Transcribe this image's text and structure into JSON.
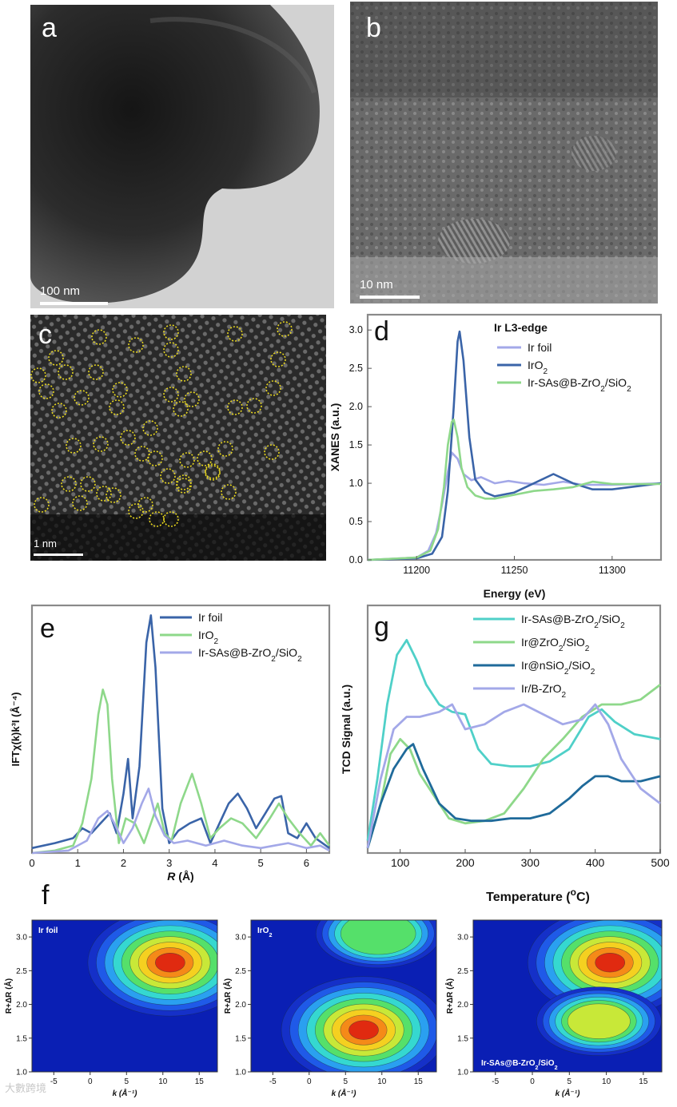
{
  "panels": {
    "a": {
      "label": "a",
      "scale": "100 nm"
    },
    "b": {
      "label": "b",
      "scale": "10 nm"
    },
    "c": {
      "label": "c",
      "scale": "1 nm"
    },
    "d": {
      "label": "d"
    },
    "e": {
      "label": "e"
    },
    "f": {
      "label": "f"
    },
    "g": {
      "label": "g"
    }
  },
  "chart_data": [
    {
      "id": "d",
      "type": "line",
      "title": "Ir L3-edge",
      "xlabel": "Energy (eV)",
      "ylabel": "XANES (a.u.)",
      "xlim": [
        11175,
        11325
      ],
      "ylim": [
        0,
        3.2
      ],
      "xticks": [
        11200,
        11250,
        11300
      ],
      "yticks": [
        0.0,
        0.5,
        1.0,
        1.5,
        2.0,
        2.5,
        3.0
      ],
      "series": [
        {
          "name": "Ir foil",
          "color": "#a3a8e8",
          "x": [
            11175,
            11200,
            11206,
            11210,
            11213,
            11216,
            11218,
            11221,
            11224,
            11228,
            11233,
            11240,
            11247,
            11255,
            11265,
            11275,
            11285,
            11300,
            11325
          ],
          "y": [
            0.0,
            0.03,
            0.12,
            0.35,
            0.72,
            1.15,
            1.4,
            1.32,
            1.12,
            1.04,
            1.08,
            1.0,
            1.03,
            1.0,
            0.98,
            1.02,
            0.98,
            0.98,
            1.0
          ]
        },
        {
          "name": "IrO2",
          "color": "#3a64a8",
          "x": [
            11175,
            11200,
            11208,
            11213,
            11216,
            11219,
            11221,
            11222,
            11224,
            11227,
            11230,
            11235,
            11240,
            11250,
            11260,
            11270,
            11280,
            11290,
            11300,
            11325
          ],
          "y": [
            0.0,
            0.02,
            0.08,
            0.3,
            0.9,
            2.0,
            2.85,
            2.98,
            2.6,
            1.6,
            1.05,
            0.88,
            0.83,
            0.88,
            1.0,
            1.12,
            1.0,
            0.92,
            0.92,
            1.0
          ]
        },
        {
          "name": "Ir-SAs@B-ZrO2/SiO2",
          "color": "#8ed88a",
          "x": [
            11175,
            11200,
            11207,
            11211,
            11214,
            11216,
            11218,
            11219,
            11221,
            11223,
            11226,
            11230,
            11235,
            11240,
            11250,
            11260,
            11270,
            11280,
            11290,
            11300,
            11325
          ],
          "y": [
            0.0,
            0.03,
            0.12,
            0.4,
            0.95,
            1.5,
            1.8,
            1.83,
            1.6,
            1.2,
            0.95,
            0.84,
            0.8,
            0.8,
            0.85,
            0.9,
            0.92,
            0.95,
            1.02,
            0.99,
            0.99
          ]
        }
      ]
    },
    {
      "id": "e",
      "type": "line",
      "xlabel": "R (Å)",
      "ylabel": "IFTχ(k)k³I (Å⁻⁴)",
      "xlim": [
        0,
        6.5
      ],
      "ylim": [
        0,
        1.0
      ],
      "xticks": [
        0,
        1,
        2,
        3,
        4,
        5,
        6
      ],
      "series": [
        {
          "name": "Ir foil",
          "color": "#3a64a8",
          "x": [
            0,
            0.5,
            0.9,
            1.1,
            1.3,
            1.5,
            1.7,
            1.85,
            2.0,
            2.1,
            2.2,
            2.35,
            2.5,
            2.6,
            2.7,
            2.85,
            3.0,
            3.2,
            3.45,
            3.7,
            3.9,
            4.1,
            4.3,
            4.5,
            4.7,
            4.9,
            5.1,
            5.3,
            5.45,
            5.6,
            5.8,
            6.0,
            6.2,
            6.5
          ],
          "y": [
            0.02,
            0.04,
            0.06,
            0.1,
            0.08,
            0.12,
            0.16,
            0.08,
            0.24,
            0.38,
            0.14,
            0.35,
            0.85,
            0.96,
            0.75,
            0.18,
            0.04,
            0.09,
            0.12,
            0.14,
            0.04,
            0.12,
            0.2,
            0.24,
            0.18,
            0.1,
            0.16,
            0.22,
            0.23,
            0.08,
            0.06,
            0.12,
            0.06,
            0.02
          ]
        },
        {
          "name": "IrO2",
          "color": "#8ed88a",
          "x": [
            0,
            0.5,
            0.9,
            1.1,
            1.3,
            1.45,
            1.55,
            1.65,
            1.75,
            1.9,
            2.05,
            2.25,
            2.45,
            2.6,
            2.75,
            2.9,
            3.05,
            3.25,
            3.5,
            3.7,
            3.9,
            4.1,
            4.35,
            4.6,
            4.9,
            5.2,
            5.4,
            5.6,
            5.85,
            6.1,
            6.3,
            6.5
          ],
          "y": [
            0.0,
            0.01,
            0.03,
            0.12,
            0.3,
            0.56,
            0.66,
            0.6,
            0.3,
            0.04,
            0.14,
            0.12,
            0.04,
            0.12,
            0.2,
            0.08,
            0.05,
            0.2,
            0.32,
            0.2,
            0.06,
            0.1,
            0.14,
            0.12,
            0.06,
            0.14,
            0.2,
            0.14,
            0.08,
            0.03,
            0.08,
            0.03
          ]
        },
        {
          "name": "Ir-SAs@B-ZrO2/SiO2",
          "color": "#a3a8e8",
          "x": [
            0,
            0.8,
            1.2,
            1.45,
            1.65,
            1.8,
            2.0,
            2.2,
            2.4,
            2.55,
            2.7,
            2.9,
            3.1,
            3.4,
            3.8,
            4.2,
            4.6,
            5.0,
            5.3,
            5.6,
            6.0,
            6.3,
            6.5
          ],
          "y": [
            0.0,
            0.01,
            0.05,
            0.14,
            0.17,
            0.12,
            0.04,
            0.1,
            0.2,
            0.26,
            0.15,
            0.07,
            0.04,
            0.05,
            0.03,
            0.05,
            0.03,
            0.02,
            0.03,
            0.04,
            0.02,
            0.03,
            0.01
          ]
        }
      ]
    },
    {
      "id": "g",
      "type": "line",
      "xlabel": "Temperature (°C)",
      "xlabel_main": "Temperature (",
      "xlabel_sup": "o",
      "xlabel_tail": "C)",
      "ylabel": "TCD Signal (a.u.)",
      "xlim": [
        50,
        500
      ],
      "ylim": [
        0,
        1.0
      ],
      "xticks": [
        100,
        200,
        300,
        400,
        500
      ],
      "series": [
        {
          "name": "Ir-SAs@B-ZrO2/SiO2",
          "color": "#4fd0c8",
          "x": [
            50,
            65,
            80,
            95,
            110,
            125,
            140,
            160,
            180,
            200,
            220,
            240,
            270,
            300,
            330,
            360,
            390,
            410,
            430,
            460,
            500
          ],
          "y": [
            0.05,
            0.3,
            0.6,
            0.8,
            0.86,
            0.78,
            0.68,
            0.6,
            0.57,
            0.56,
            0.42,
            0.36,
            0.35,
            0.35,
            0.37,
            0.42,
            0.55,
            0.58,
            0.53,
            0.48,
            0.46
          ]
        },
        {
          "name": "Ir@ZrO2/SiO2",
          "color": "#8ed88a",
          "x": [
            50,
            70,
            85,
            100,
            115,
            130,
            150,
            175,
            200,
            230,
            260,
            290,
            320,
            350,
            380,
            410,
            440,
            470,
            500
          ],
          "y": [
            0.02,
            0.2,
            0.4,
            0.46,
            0.42,
            0.32,
            0.24,
            0.14,
            0.12,
            0.13,
            0.16,
            0.26,
            0.38,
            0.46,
            0.55,
            0.6,
            0.6,
            0.62,
            0.68
          ]
        },
        {
          "name": "Ir@nSiO2/SiO2",
          "color": "#1f6a9a",
          "x": [
            50,
            70,
            90,
            110,
            120,
            135,
            160,
            185,
            210,
            240,
            270,
            300,
            330,
            360,
            380,
            400,
            420,
            440,
            470,
            500
          ],
          "y": [
            0.02,
            0.2,
            0.34,
            0.42,
            0.44,
            0.34,
            0.2,
            0.14,
            0.13,
            0.13,
            0.14,
            0.14,
            0.16,
            0.22,
            0.27,
            0.31,
            0.31,
            0.29,
            0.29,
            0.31
          ]
        },
        {
          "name": "Ir/B-ZrO2",
          "color": "#a3a8e8",
          "x": [
            50,
            70,
            90,
            110,
            130,
            160,
            180,
            200,
            230,
            260,
            290,
            320,
            350,
            380,
            400,
            420,
            440,
            470,
            500
          ],
          "y": [
            0.02,
            0.3,
            0.5,
            0.55,
            0.55,
            0.57,
            0.6,
            0.5,
            0.52,
            0.57,
            0.6,
            0.56,
            0.52,
            0.54,
            0.6,
            0.52,
            0.38,
            0.26,
            0.2
          ]
        }
      ]
    },
    {
      "id": "f1",
      "type": "heatmap",
      "annotation": "Ir foil",
      "xlabel": "k (Å⁻¹)",
      "ylabel": "R+ΔR (Å)",
      "xlim": [
        -8,
        17.5
      ],
      "ylim": [
        1.0,
        3.25
      ],
      "xticks": [
        -5,
        0,
        5,
        10,
        15
      ],
      "yticks": [
        1.0,
        1.5,
        2.0,
        2.5,
        3.0
      ],
      "peaks": [
        {
          "k": 11.0,
          "R": 2.62,
          "intensity": 1.0
        }
      ]
    },
    {
      "id": "f2",
      "type": "heatmap",
      "annotation": "IrO2",
      "xlabel": "k (Å⁻¹)",
      "ylabel": "R+ΔR (Å)",
      "xlim": [
        -8,
        17.5
      ],
      "ylim": [
        1.0,
        3.25
      ],
      "xticks": [
        -5,
        0,
        5,
        10,
        15
      ],
      "yticks": [
        1.0,
        1.5,
        2.0,
        2.5,
        3.0
      ],
      "peaks": [
        {
          "k": 7.5,
          "R": 1.62,
          "intensity": 1.0
        },
        {
          "k": 9.5,
          "R": 3.05,
          "intensity": 0.55
        }
      ]
    },
    {
      "id": "f3",
      "type": "heatmap",
      "annotation": "Ir-SAs@B-ZrO2/SiO2",
      "xlabel": "k (Å⁻¹)",
      "ylabel": "R+ΔR (Å)",
      "xlim": [
        -8,
        17.5
      ],
      "ylim": [
        1.0,
        3.25
      ],
      "xticks": [
        -5,
        0,
        5,
        10,
        15
      ],
      "yticks": [
        1.0,
        1.5,
        2.0,
        2.5,
        3.0
      ],
      "peaks": [
        {
          "k": 10.5,
          "R": 2.62,
          "intensity": 1.0
        },
        {
          "k": 9.0,
          "R": 1.75,
          "intensity": 0.7
        }
      ]
    }
  ],
  "footer": {
    "watermark": "大數跨境"
  }
}
